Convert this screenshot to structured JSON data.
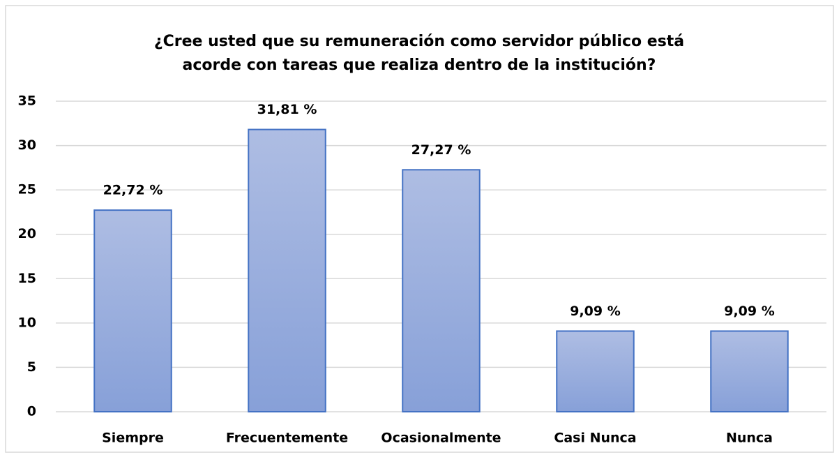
{
  "chart_data": {
    "type": "bar",
    "title": [
      "¿Cree usted que su remuneración como servidor público está",
      "acorde con tareas que realiza dentro de la institución?"
    ],
    "categories": [
      "Siempre",
      "Frecuentemente",
      "Ocasionalmente",
      "Casi Nunca",
      "Nunca"
    ],
    "values": [
      22.72,
      31.81,
      27.27,
      9.09,
      9.09
    ],
    "value_labels": [
      "22,72 %",
      "31,81 %",
      "27,27 %",
      "9,09 %",
      "9,09 %"
    ],
    "color": "#4472c4",
    "ylim": [
      0,
      35
    ],
    "yticks": [
      0,
      5,
      10,
      15,
      20,
      25,
      30,
      35
    ],
    "grid": true
  }
}
